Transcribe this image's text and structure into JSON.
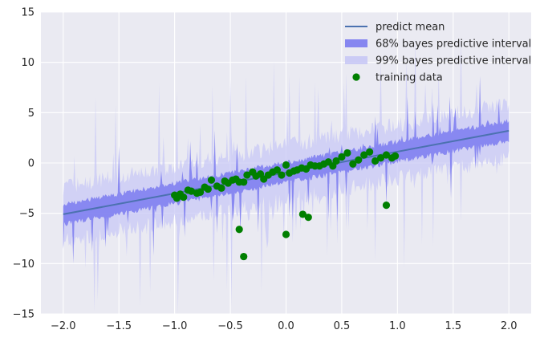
{
  "chart_data": {
    "type": "line",
    "title": "",
    "xlabel": "",
    "ylabel": "",
    "xlim": [
      -2.2,
      2.2
    ],
    "ylim": [
      -15,
      15
    ],
    "grid": true,
    "legend_position": "top-right",
    "x_ticks": [
      "−2.0",
      "−1.5",
      "−1.0",
      "−0.5",
      "0.0",
      "0.5",
      "1.0",
      "1.5",
      "2.0"
    ],
    "y_ticks": [
      "−15",
      "−10",
      "−5",
      "0",
      "5",
      "10",
      "15"
    ],
    "x_tick_values": [
      -2.0,
      -1.5,
      -1.0,
      -0.5,
      0.0,
      0.5,
      1.0,
      1.5,
      2.0
    ],
    "y_tick_values": [
      -15,
      -10,
      -5,
      0,
      5,
      10,
      15
    ],
    "predict_mean": {
      "name": "predict mean",
      "x": [
        -2.0,
        2.0
      ],
      "y": [
        -5.1,
        3.2
      ],
      "color": "#4c72b0"
    },
    "interval_68": {
      "name": "68% bayes predictive interval",
      "half_width": 1.0,
      "color": "#7b7bf0"
    },
    "interval_99": {
      "name": "99% bayes predictive interval",
      "half_width": 2.7,
      "color": "#c8c8f5"
    },
    "training_data": {
      "name": "training data",
      "color": "#007f00",
      "x": [
        -1.0,
        -0.98,
        -0.95,
        -0.92,
        -0.88,
        -0.85,
        -0.8,
        -0.77,
        -0.73,
        -0.7,
        -0.67,
        -0.62,
        -0.58,
        -0.55,
        -0.52,
        -0.48,
        -0.45,
        -0.42,
        -0.38,
        -0.35,
        -0.3,
        -0.27,
        -0.23,
        -0.2,
        -0.16,
        -0.12,
        -0.08,
        -0.04,
        0.0,
        0.03,
        0.07,
        0.1,
        0.14,
        0.18,
        0.22,
        0.26,
        0.3,
        0.34,
        0.38,
        0.42,
        0.45,
        0.5,
        0.55,
        0.6,
        0.65,
        0.7,
        0.75,
        0.8,
        0.85,
        0.9,
        0.95,
        0.98,
        -0.42,
        -0.38,
        0.0,
        0.15,
        0.2,
        0.9
      ],
      "y": [
        -3.2,
        -3.5,
        -3.1,
        -3.4,
        -2.7,
        -2.8,
        -3.0,
        -2.9,
        -2.4,
        -2.6,
        -1.7,
        -2.3,
        -2.5,
        -1.8,
        -2.0,
        -1.7,
        -1.6,
        -1.9,
        -1.9,
        -1.2,
        -0.9,
        -1.3,
        -1.1,
        -1.6,
        -1.2,
        -0.9,
        -0.7,
        -1.2,
        -0.2,
        -1.0,
        -0.8,
        -0.7,
        -0.5,
        -0.6,
        -0.2,
        -0.3,
        -0.3,
        -0.1,
        0.1,
        -0.3,
        0.2,
        0.6,
        1.0,
        -0.1,
        0.3,
        0.8,
        1.1,
        0.2,
        0.5,
        0.8,
        0.5,
        0.7,
        -6.6,
        -9.3,
        -7.1,
        -5.1,
        -5.4,
        -4.2
      ]
    }
  }
}
